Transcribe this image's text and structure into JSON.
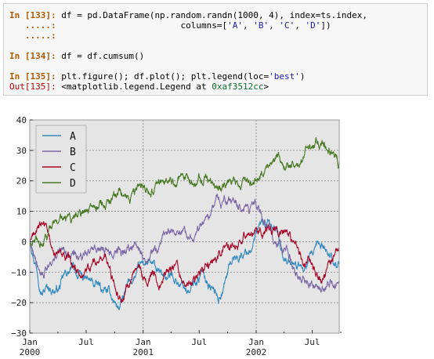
{
  "console": {
    "in133": {
      "prompt": "In [133]:",
      "code_a": " df = pd.DataFrame(np.random.randn(1000, 4), index=ts.index,"
    },
    "cont1": {
      "prompt": "   .....:",
      "pad": "                        columns=[",
      "q1": "'A'",
      "c1": ", ",
      "q2": "'B'",
      "c2": ", ",
      "q3": "'C'",
      "c3": ", ",
      "q4": "'D'",
      "end": "])"
    },
    "cont2": {
      "prompt": "   .....:"
    },
    "in134": {
      "prompt": "In [134]:",
      "code": " df = df.cumsum()"
    },
    "in135": {
      "prompt": "In [135]:",
      "code_a": " plt.figure(); df.plot(); plt.legend(loc=",
      "str": "'best'",
      "code_b": ")"
    },
    "out135": {
      "prompt": "Out[135]:",
      "text": " <matplotlib.legend.Legend at ",
      "hex": "0xaf3512cc",
      "close": ">"
    }
  },
  "chart_data": {
    "type": "line",
    "x_start": "2000-01-01",
    "x_end": "2002-09-26",
    "ylim": [
      -30,
      40
    ],
    "yticks": [
      -30,
      -20,
      -10,
      0,
      10,
      20,
      30,
      40
    ],
    "xtick_labels": [
      {
        "top": "Jan",
        "bottom": "2000"
      },
      {
        "top": "Jul",
        "bottom": ""
      },
      {
        "top": "Jan",
        "bottom": "2001"
      },
      {
        "top": "Jul",
        "bottom": ""
      },
      {
        "top": "Jan",
        "bottom": "2002"
      },
      {
        "top": "Jul",
        "bottom": ""
      }
    ],
    "grid": true,
    "legend": "top-left",
    "series": [
      {
        "name": "A",
        "color": "#348abd",
        "anchors": [
          [
            "2000-01-01",
            2
          ],
          [
            "2000-02-10",
            -12
          ],
          [
            "2000-04-01",
            -14
          ],
          [
            "2000-05-15",
            -10
          ],
          [
            "2000-07-01",
            -14
          ],
          [
            "2000-09-01",
            -18
          ],
          [
            "2000-10-15",
            -22
          ],
          [
            "2000-12-01",
            -13
          ],
          [
            "2001-01-15",
            -8
          ],
          [
            "2001-03-01",
            -14
          ],
          [
            "2001-04-15",
            -12
          ],
          [
            "2001-06-01",
            -16
          ],
          [
            "2001-07-15",
            -10
          ],
          [
            "2001-09-01",
            -18
          ],
          [
            "2001-10-15",
            -5
          ],
          [
            "2001-12-01",
            -2
          ],
          [
            "2002-01-15",
            4
          ],
          [
            "2002-03-01",
            3
          ],
          [
            "2002-04-15",
            -5
          ],
          [
            "2002-06-01",
            -10
          ],
          [
            "2002-08-01",
            -4
          ],
          [
            "2002-09-26",
            -6
          ]
        ]
      },
      {
        "name": "B",
        "color": "#7a68a6",
        "anchors": [
          [
            "2000-01-01",
            0
          ],
          [
            "2000-02-10",
            -8
          ],
          [
            "2000-04-01",
            -4
          ],
          [
            "2000-05-15",
            -5
          ],
          [
            "2000-07-01",
            -3
          ],
          [
            "2000-09-01",
            -2
          ],
          [
            "2000-10-15",
            -3
          ],
          [
            "2000-12-01",
            -2
          ],
          [
            "2001-01-15",
            -4
          ],
          [
            "2001-03-01",
            -1
          ],
          [
            "2001-04-15",
            4
          ],
          [
            "2001-06-01",
            5
          ],
          [
            "2001-07-15",
            8
          ],
          [
            "2001-09-01",
            14
          ],
          [
            "2001-10-15",
            12
          ],
          [
            "2001-12-01",
            13
          ],
          [
            "2002-01-15",
            7
          ],
          [
            "2002-03-01",
            -4
          ],
          [
            "2002-04-15",
            -4
          ],
          [
            "2002-06-01",
            -10
          ],
          [
            "2002-08-01",
            -17
          ],
          [
            "2002-09-26",
            -12
          ]
        ]
      },
      {
        "name": "C",
        "color": "#a60628",
        "anchors": [
          [
            "2000-01-01",
            0
          ],
          [
            "2000-02-10",
            5
          ],
          [
            "2000-04-01",
            -5
          ],
          [
            "2000-05-15",
            -10
          ],
          [
            "2000-07-01",
            -12
          ],
          [
            "2000-09-01",
            -6
          ],
          [
            "2000-10-15",
            -18
          ],
          [
            "2000-12-01",
            -8
          ],
          [
            "2001-01-15",
            -14
          ],
          [
            "2001-03-01",
            -10
          ],
          [
            "2001-04-15",
            -6
          ],
          [
            "2001-06-01",
            -14
          ],
          [
            "2001-07-15",
            -10
          ],
          [
            "2001-09-01",
            -6
          ],
          [
            "2001-10-15",
            -2
          ],
          [
            "2001-12-01",
            5
          ],
          [
            "2002-01-15",
            2
          ],
          [
            "2002-03-01",
            4
          ],
          [
            "2002-04-15",
            0
          ],
          [
            "2002-06-01",
            -6
          ],
          [
            "2002-08-01",
            -12
          ],
          [
            "2002-09-26",
            -4
          ]
        ]
      },
      {
        "name": "D",
        "color": "#467821",
        "anchors": [
          [
            "2000-01-01",
            -2
          ],
          [
            "2000-02-10",
            -1
          ],
          [
            "2000-04-01",
            4
          ],
          [
            "2000-05-15",
            5
          ],
          [
            "2000-07-01",
            8
          ],
          [
            "2000-09-01",
            12
          ],
          [
            "2000-10-15",
            18
          ],
          [
            "2000-12-01",
            14
          ],
          [
            "2001-01-15",
            16
          ],
          [
            "2001-03-01",
            18
          ],
          [
            "2001-04-15",
            17
          ],
          [
            "2001-06-01",
            20
          ],
          [
            "2001-07-15",
            21
          ],
          [
            "2001-09-01",
            18
          ],
          [
            "2001-10-15",
            18
          ],
          [
            "2001-12-01",
            17
          ],
          [
            "2002-01-15",
            22
          ],
          [
            "2002-03-01",
            25
          ],
          [
            "2002-04-15",
            27
          ],
          [
            "2002-06-01",
            30
          ],
          [
            "2002-08-01",
            33
          ],
          [
            "2002-09-26",
            27
          ]
        ]
      }
    ]
  }
}
